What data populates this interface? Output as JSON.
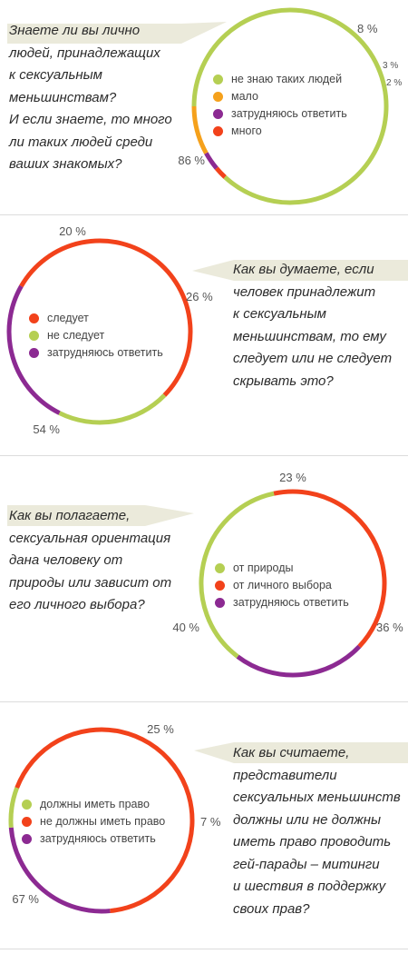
{
  "colors": {
    "green": "#b5cf53",
    "red": "#f2421b",
    "purple": "#8c2a92",
    "orange": "#f5a11c",
    "callout": "#ebeadb"
  },
  "chart_data": [
    {
      "type": "pie",
      "style": "donut-ring",
      "question": [
        "Знаете ли вы лично",
        "людей, принадлежащих",
        "к сексуальным",
        "меньшинствам?",
        "И если знаете, то много",
        "ли таких людей среди",
        "ваших знакомых?"
      ],
      "slices": [
        {
          "label": "не знаю таких людей",
          "value": 86,
          "pct_label": "86 %",
          "color": "#b5cf53"
        },
        {
          "label": "мало",
          "value": 8,
          "pct_label": "8 %",
          "color": "#f5a11c"
        },
        {
          "label": "затрудняюсь ответить",
          "value": 3,
          "pct_label": "3 %",
          "color": "#8c2a92"
        },
        {
          "label": "много",
          "value": 2,
          "pct_label": "2 %",
          "color": "#f2421b"
        }
      ]
    },
    {
      "type": "pie",
      "style": "donut-ring",
      "question": [
        "Как вы думаете, если",
        "человек принадлежит",
        "к сексуальным",
        "меньшинствам, то ему",
        "следует или не следует",
        "скрывать это?"
      ],
      "slices": [
        {
          "label": "следует",
          "value": 54,
          "pct_label": "54 %",
          "color": "#f2421b"
        },
        {
          "label": "не следует",
          "value": 20,
          "pct_label": "20 %",
          "color": "#b5cf53"
        },
        {
          "label": "затрудняюсь ответить",
          "value": 26,
          "pct_label": "26 %",
          "color": "#8c2a92"
        }
      ]
    },
    {
      "type": "pie",
      "style": "donut-ring",
      "question": [
        "Как вы полагаете,",
        "сексуальная ориентация",
        "дана человеку  от",
        "природы или зависит от",
        "его личного выбора?"
      ],
      "slices": [
        {
          "label": "от природы",
          "value": 36,
          "pct_label": "36 %",
          "color": "#b5cf53"
        },
        {
          "label": "от личного выбора",
          "value": 40,
          "pct_label": "40 %",
          "color": "#f2421b"
        },
        {
          "label": "затрудняюсь ответить",
          "value": 23,
          "pct_label": "23 %",
          "color": "#8c2a92"
        }
      ]
    },
    {
      "type": "pie",
      "style": "donut-ring",
      "question": [
        "Как вы считаете,",
        "представители",
        "сексуальных меньшинств",
        "должны или не должны",
        "иметь право проводить",
        "гей-парады – митинги",
        "и шествия в поддержку",
        "своих прав?"
      ],
      "slices": [
        {
          "label": "должны иметь право",
          "value": 7,
          "pct_label": "7 %",
          "color": "#b5cf53"
        },
        {
          "label": "не должны иметь право",
          "value": 67,
          "pct_label": "67 %",
          "color": "#f2421b"
        },
        {
          "label": "затрудняюсь ответить",
          "value": 25,
          "pct_label": "25 %",
          "color": "#8c2a92"
        }
      ]
    }
  ]
}
